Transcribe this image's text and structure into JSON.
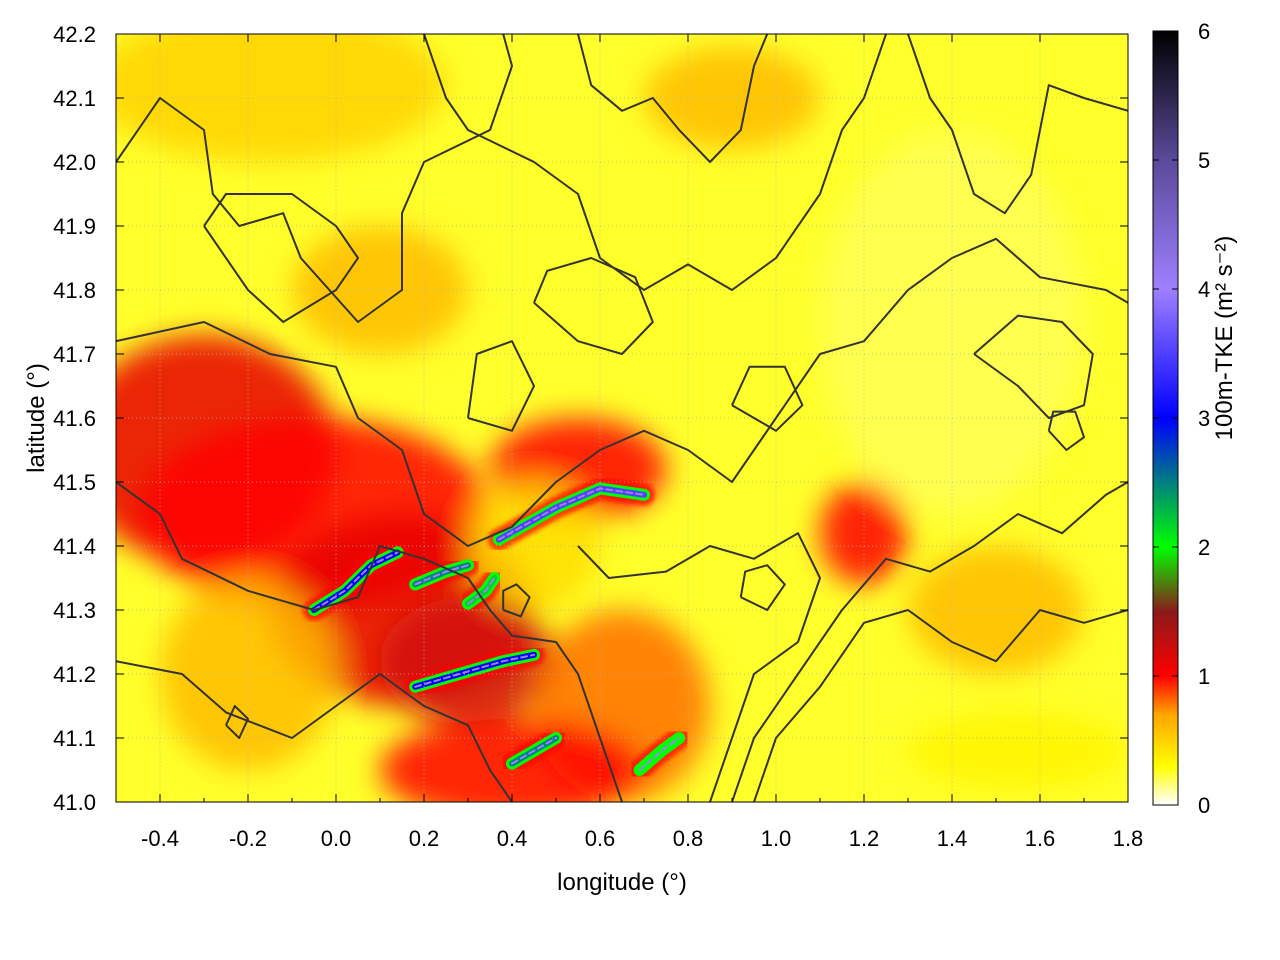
{
  "chart_data": {
    "type": "heatmap",
    "title": "",
    "xlabel": "longitude (°)",
    "ylabel": "latitude (°)",
    "xlim": [
      -0.5,
      1.8
    ],
    "ylim": [
      41.0,
      42.2
    ],
    "xticks": [
      -0.4,
      -0.2,
      0.0,
      0.2,
      0.4,
      0.6,
      0.8,
      1.0,
      1.2,
      1.4,
      1.6,
      1.8
    ],
    "xtick_labels": [
      "-0.4",
      "-0.2",
      "0.0",
      "0.2",
      "0.4",
      "0.6",
      "0.8",
      "1.0",
      "1.2",
      "1.4",
      "1.6",
      "1.8"
    ],
    "yticks": [
      41.0,
      41.1,
      41.2,
      41.3,
      41.4,
      41.5,
      41.6,
      41.7,
      41.8,
      41.9,
      42.0,
      42.1,
      42.2
    ],
    "ytick_labels": [
      "41.0",
      "41.1",
      "41.2",
      "41.3",
      "41.4",
      "41.5",
      "41.6",
      "41.7",
      "41.8",
      "41.9",
      "42.0",
      "42.1",
      "42.2"
    ],
    "grid": true,
    "colorbar": {
      "label": "100m-TKE (m² s⁻²)",
      "range": [
        0,
        6
      ],
      "ticks": [
        0,
        1,
        2,
        3,
        4,
        5,
        6
      ],
      "tick_labels": [
        "0",
        "1",
        "2",
        "3",
        "4",
        "5",
        "6"
      ],
      "stops": [
        {
          "value": 0.0,
          "color": "#ffffff"
        },
        {
          "value": 0.3,
          "color": "#ffff00"
        },
        {
          "value": 0.7,
          "color": "#ffa500"
        },
        {
          "value": 1.0,
          "color": "#ff0000"
        },
        {
          "value": 1.5,
          "color": "#8b1a1a"
        },
        {
          "value": 2.0,
          "color": "#00ff00"
        },
        {
          "value": 3.0,
          "color": "#0000ff"
        },
        {
          "value": 4.0,
          "color": "#9f7fff"
        },
        {
          "value": 5.0,
          "color": "#5a4a9a"
        },
        {
          "value": 6.0,
          "color": "#000000"
        }
      ]
    },
    "field_blobs": [
      {
        "lon": -0.15,
        "lat": 42.12,
        "rlon": 0.4,
        "rlat": 0.12,
        "value": 0.5
      },
      {
        "lon": -0.3,
        "lat": 41.55,
        "rlon": 0.3,
        "rlat": 0.18,
        "value": 1.1
      },
      {
        "lon": -0.05,
        "lat": 41.45,
        "rlon": 0.4,
        "rlat": 0.15,
        "value": 1.0
      },
      {
        "lon": 0.15,
        "lat": 41.3,
        "rlon": 0.3,
        "rlat": 0.15,
        "value": 1.1
      },
      {
        "lon": 0.3,
        "lat": 41.22,
        "rlon": 0.2,
        "rlat": 0.1,
        "value": 1.2
      },
      {
        "lon": 0.55,
        "lat": 41.52,
        "rlon": 0.2,
        "rlat": 0.08,
        "value": 1.0
      },
      {
        "lon": 0.65,
        "lat": 41.15,
        "rlon": 0.2,
        "rlat": 0.15,
        "value": 0.8
      },
      {
        "lon": 0.4,
        "lat": 41.05,
        "rlon": 0.3,
        "rlat": 0.08,
        "value": 1.0
      },
      {
        "lon": -0.2,
        "lat": 41.2,
        "rlon": 0.2,
        "rlat": 0.15,
        "value": 0.6
      },
      {
        "lon": 1.2,
        "lat": 41.42,
        "rlon": 0.1,
        "rlat": 0.08,
        "value": 1.0
      },
      {
        "lon": 1.5,
        "lat": 41.3,
        "rlon": 0.2,
        "rlat": 0.1,
        "value": 0.6
      },
      {
        "lon": 1.55,
        "lat": 41.08,
        "rlon": 0.25,
        "rlat": 0.06,
        "value": 0.35
      },
      {
        "lon": 0.1,
        "lat": 41.8,
        "rlon": 0.2,
        "rlat": 0.1,
        "value": 0.6
      },
      {
        "lon": 0.9,
        "lat": 42.1,
        "rlon": 0.2,
        "rlat": 0.08,
        "value": 0.6
      },
      {
        "lon": 0.45,
        "lat": 41.4,
        "rlon": 0.15,
        "rlat": 0.1,
        "value": 0.45
      },
      {
        "lon": 1.4,
        "lat": 41.75,
        "rlon": 0.3,
        "rlat": 0.3,
        "value": 0.2
      }
    ],
    "high_tke_streaks": [
      {
        "points": [
          [
            0.37,
            41.41
          ],
          [
            0.5,
            41.46
          ],
          [
            0.6,
            41.49
          ],
          [
            0.7,
            41.48
          ]
        ],
        "value": 3.5
      },
      {
        "points": [
          [
            0.18,
            41.18
          ],
          [
            0.28,
            41.2
          ],
          [
            0.38,
            41.22
          ],
          [
            0.45,
            41.23
          ]
        ],
        "value": 3.0
      },
      {
        "points": [
          [
            -0.05,
            41.3
          ],
          [
            0.02,
            41.33
          ],
          [
            0.08,
            41.37
          ],
          [
            0.14,
            41.39
          ]
        ],
        "value": 3.0
      },
      {
        "points": [
          [
            0.18,
            41.34
          ],
          [
            0.25,
            41.36
          ],
          [
            0.3,
            41.37
          ]
        ],
        "value": 2.5
      },
      {
        "points": [
          [
            0.4,
            41.06
          ],
          [
            0.45,
            41.08
          ],
          [
            0.5,
            41.1
          ]
        ],
        "value": 2.5
      },
      {
        "points": [
          [
            0.69,
            41.05
          ],
          [
            0.74,
            41.08
          ],
          [
            0.78,
            41.1
          ]
        ],
        "value": 2.0
      },
      {
        "points": [
          [
            0.3,
            41.31
          ],
          [
            0.34,
            41.33
          ],
          [
            0.36,
            41.35
          ]
        ],
        "value": 2.2
      }
    ],
    "contours": [
      [
        [
          -0.5,
          42.0
        ],
        [
          -0.4,
          42.1
        ],
        [
          -0.3,
          42.05
        ],
        [
          -0.28,
          41.95
        ],
        [
          -0.22,
          41.9
        ],
        [
          -0.12,
          41.92
        ],
        [
          -0.08,
          41.85
        ],
        [
          0.05,
          41.75
        ],
        [
          0.15,
          41.8
        ],
        [
          0.15,
          41.92
        ],
        [
          0.2,
          42.0
        ],
        [
          0.35,
          42.05
        ],
        [
          0.4,
          42.15
        ],
        [
          0.38,
          42.2
        ]
      ],
      [
        [
          -0.5,
          41.72
        ],
        [
          -0.3,
          41.75
        ],
        [
          -0.15,
          41.7
        ],
        [
          0.0,
          41.68
        ],
        [
          0.05,
          41.6
        ],
        [
          0.15,
          41.55
        ],
        [
          0.2,
          41.45
        ],
        [
          0.3,
          41.4
        ],
        [
          0.4,
          41.43
        ],
        [
          0.5,
          41.5
        ],
        [
          0.6,
          41.55
        ],
        [
          0.7,
          41.58
        ],
        [
          0.8,
          41.55
        ],
        [
          0.9,
          41.5
        ],
        [
          1.0,
          41.6
        ],
        [
          1.1,
          41.7
        ],
        [
          1.2,
          41.72
        ],
        [
          1.3,
          41.8
        ],
        [
          1.4,
          41.85
        ],
        [
          1.5,
          41.88
        ],
        [
          1.6,
          41.82
        ],
        [
          1.75,
          41.8
        ],
        [
          1.8,
          41.78
        ]
      ],
      [
        [
          -0.5,
          41.5
        ],
        [
          -0.4,
          41.45
        ],
        [
          -0.35,
          41.38
        ],
        [
          -0.2,
          41.33
        ],
        [
          -0.05,
          41.3
        ],
        [
          0.05,
          41.32
        ],
        [
          0.1,
          41.4
        ],
        [
          0.2,
          41.38
        ],
        [
          0.3,
          41.35
        ],
        [
          0.35,
          41.3
        ],
        [
          0.4,
          41.26
        ],
        [
          0.5,
          41.25
        ],
        [
          0.55,
          41.2
        ],
        [
          0.6,
          41.1
        ],
        [
          0.65,
          41.0
        ]
      ],
      [
        [
          -0.5,
          41.22
        ],
        [
          -0.35,
          41.2
        ],
        [
          -0.25,
          41.14
        ],
        [
          -0.1,
          41.1
        ],
        [
          0.0,
          41.15
        ],
        [
          0.1,
          41.2
        ],
        [
          0.2,
          41.15
        ],
        [
          0.3,
          41.12
        ],
        [
          0.35,
          41.05
        ],
        [
          0.4,
          41.0
        ]
      ],
      [
        [
          0.55,
          41.4
        ],
        [
          0.62,
          41.35
        ],
        [
          0.75,
          41.36
        ],
        [
          0.85,
          41.4
        ],
        [
          0.95,
          41.38
        ],
        [
          1.05,
          41.42
        ],
        [
          1.1,
          41.35
        ],
        [
          1.05,
          41.25
        ],
        [
          0.95,
          41.2
        ],
        [
          0.9,
          41.1
        ],
        [
          0.85,
          41.0
        ]
      ],
      [
        [
          0.9,
          41.0
        ],
        [
          0.95,
          41.1
        ],
        [
          1.05,
          41.2
        ],
        [
          1.15,
          41.3
        ],
        [
          1.25,
          41.38
        ],
        [
          1.35,
          41.36
        ],
        [
          1.45,
          41.4
        ],
        [
          1.55,
          41.45
        ],
        [
          1.65,
          41.42
        ],
        [
          1.75,
          41.48
        ],
        [
          1.8,
          41.5
        ]
      ],
      [
        [
          0.95,
          41.0
        ],
        [
          1.0,
          41.1
        ],
        [
          1.1,
          41.18
        ],
        [
          1.2,
          41.28
        ],
        [
          1.3,
          41.3
        ],
        [
          1.4,
          41.25
        ],
        [
          1.5,
          41.22
        ],
        [
          1.6,
          41.3
        ],
        [
          1.7,
          41.28
        ],
        [
          1.8,
          41.3
        ]
      ],
      [
        [
          0.2,
          42.2
        ],
        [
          0.25,
          42.1
        ],
        [
          0.3,
          42.05
        ],
        [
          0.45,
          42.0
        ],
        [
          0.55,
          41.95
        ],
        [
          0.6,
          41.85
        ],
        [
          0.7,
          41.8
        ],
        [
          0.8,
          41.84
        ],
        [
          0.9,
          41.8
        ],
        [
          1.0,
          41.85
        ],
        [
          1.1,
          41.95
        ],
        [
          1.15,
          42.05
        ],
        [
          1.2,
          42.1
        ],
        [
          1.25,
          42.2
        ]
      ],
      [
        [
          1.3,
          42.2
        ],
        [
          1.35,
          42.1
        ],
        [
          1.4,
          42.05
        ],
        [
          1.45,
          41.95
        ],
        [
          1.52,
          41.92
        ],
        [
          1.58,
          41.98
        ],
        [
          1.6,
          42.05
        ],
        [
          1.62,
          42.12
        ],
        [
          1.7,
          42.1
        ],
        [
          1.8,
          42.08
        ]
      ],
      [
        [
          0.55,
          42.2
        ],
        [
          0.58,
          42.12
        ],
        [
          0.65,
          42.08
        ],
        [
          0.72,
          42.1
        ],
        [
          0.78,
          42.05
        ],
        [
          0.85,
          42.0
        ],
        [
          0.92,
          42.05
        ],
        [
          0.95,
          42.15
        ],
        [
          0.98,
          42.2
        ]
      ],
      [
        [
          -0.3,
          41.9
        ],
        [
          -0.2,
          41.8
        ],
        [
          -0.12,
          41.75
        ],
        [
          0.0,
          41.8
        ],
        [
          0.05,
          41.85
        ],
        [
          0.0,
          41.9
        ],
        [
          -0.1,
          41.95
        ],
        [
          -0.25,
          41.95
        ],
        [
          -0.3,
          41.9
        ]
      ],
      [
        [
          0.45,
          41.78
        ],
        [
          0.55,
          41.72
        ],
        [
          0.65,
          41.7
        ],
        [
          0.72,
          41.75
        ],
        [
          0.68,
          41.82
        ],
        [
          0.58,
          41.85
        ],
        [
          0.48,
          41.83
        ],
        [
          0.45,
          41.78
        ]
      ],
      [
        [
          1.45,
          41.7
        ],
        [
          1.55,
          41.65
        ],
        [
          1.62,
          41.6
        ],
        [
          1.7,
          41.62
        ],
        [
          1.72,
          41.7
        ],
        [
          1.65,
          41.75
        ],
        [
          1.55,
          41.76
        ],
        [
          1.45,
          41.7
        ]
      ],
      [
        [
          0.3,
          41.6
        ],
        [
          0.4,
          41.58
        ],
        [
          0.45,
          41.65
        ],
        [
          0.4,
          41.72
        ],
        [
          0.32,
          41.7
        ],
        [
          0.3,
          41.6
        ]
      ],
      [
        [
          0.9,
          41.62
        ],
        [
          1.0,
          41.58
        ],
        [
          1.06,
          41.62
        ],
        [
          1.02,
          41.68
        ],
        [
          0.94,
          41.68
        ],
        [
          0.9,
          41.62
        ]
      ],
      [
        [
          0.92,
          41.32
        ],
        [
          0.98,
          41.3
        ],
        [
          1.02,
          41.34
        ],
        [
          0.98,
          41.37
        ],
        [
          0.93,
          41.36
        ],
        [
          0.92,
          41.32
        ]
      ],
      [
        [
          0.38,
          41.3
        ],
        [
          0.42,
          41.29
        ],
        [
          0.44,
          41.32
        ],
        [
          0.41,
          41.34
        ],
        [
          0.38,
          41.33
        ],
        [
          0.38,
          41.3
        ]
      ],
      [
        [
          1.62,
          41.58
        ],
        [
          1.66,
          41.55
        ],
        [
          1.7,
          41.57
        ],
        [
          1.68,
          41.61
        ],
        [
          1.63,
          41.61
        ],
        [
          1.62,
          41.58
        ]
      ],
      [
        [
          -0.25,
          41.12
        ],
        [
          -0.22,
          41.1
        ],
        [
          -0.2,
          41.13
        ],
        [
          -0.23,
          41.15
        ],
        [
          -0.25,
          41.12
        ]
      ]
    ]
  }
}
